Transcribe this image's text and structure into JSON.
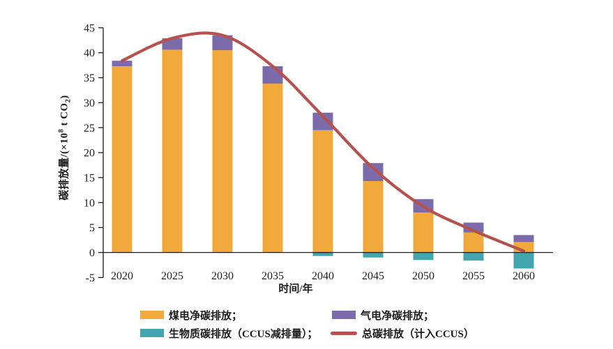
{
  "chart_data": {
    "type": "bar",
    "subtype": "stacked-bars-with-line-overlay",
    "categories": [
      "2020",
      "2025",
      "2030",
      "2035",
      "2040",
      "2045",
      "2050",
      "2055",
      "2060"
    ],
    "series": [
      {
        "name": "煤电净碳排放",
        "type": "bar",
        "color": "#F2A93C",
        "values": [
          37.3,
          40.6,
          40.5,
          33.8,
          24.5,
          14.3,
          8.0,
          4.0,
          2.1
        ]
      },
      {
        "name": "气电净碳排放",
        "type": "bar",
        "color": "#7C6BAB",
        "values": [
          1.1,
          2.3,
          3.0,
          3.5,
          3.5,
          3.6,
          2.7,
          2.0,
          1.4
        ]
      },
      {
        "name": "生物质碳排放（CCUS减排量）",
        "type": "bar",
        "color": "#41A6AF",
        "values": [
          0,
          0,
          0,
          0,
          -0.7,
          -1.0,
          -1.5,
          -1.6,
          -3.2
        ]
      },
      {
        "name": "总碳排放（计入CCUS）",
        "type": "line",
        "color": "#B5524E",
        "values": [
          38.4,
          42.9,
          43.5,
          37.3,
          27.3,
          16.9,
          9.2,
          4.4,
          0.3
        ]
      }
    ],
    "title": "",
    "xlabel": "时间/年",
    "ylabel": "碳排放量/(×10⁸ t CO₂)",
    "ylim": [
      -5,
      45
    ],
    "y_ticks": [
      45,
      40,
      35,
      30,
      25,
      20,
      15,
      10,
      5,
      0,
      -5
    ],
    "grid": false,
    "legend_position": "bottom",
    "stacked": true
  },
  "axes": {
    "x_label": "时间/年",
    "y_label_prefix": "碳排放量/(×10",
    "y_label_exp": "8",
    "y_label_mid": " t CO",
    "y_label_sub": "2",
    "y_label_suffix": ")",
    "axis_color": "#1a1a1a"
  },
  "legend": {
    "items": [
      {
        "label": "煤电净碳排放；",
        "color": "#F2A93C",
        "marker": "swatch"
      },
      {
        "label": "气电净碳排放；",
        "color": "#7C6BAB",
        "marker": "swatch"
      },
      {
        "label": "生物质碳排放（CCUS减排量）；",
        "color": "#41A6AF",
        "marker": "swatch"
      },
      {
        "label": "总碳排放（计入CCUS）",
        "color": "#B5524E",
        "marker": "line"
      }
    ]
  }
}
